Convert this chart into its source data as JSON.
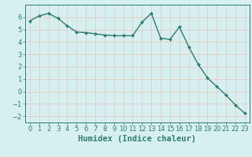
{
  "x": [
    0,
    1,
    2,
    3,
    4,
    5,
    6,
    7,
    8,
    9,
    10,
    11,
    12,
    13,
    14,
    15,
    16,
    17,
    18,
    19,
    20,
    21,
    22,
    23
  ],
  "y": [
    5.7,
    6.1,
    6.3,
    5.9,
    5.3,
    4.8,
    4.75,
    4.65,
    4.55,
    4.5,
    4.5,
    4.5,
    5.6,
    6.3,
    4.3,
    4.2,
    5.2,
    3.6,
    2.2,
    1.1,
    0.4,
    -0.3,
    -1.1,
    -1.75
  ],
  "line_color": "#2e7d6e",
  "marker": "D",
  "marker_size": 2.0,
  "linewidth": 1.0,
  "bg_color": "#d6f0ef",
  "grid_color": "#e8c8c8",
  "title": "",
  "xlabel": "Humidex (Indice chaleur)",
  "ylabel": "",
  "xlim": [
    -0.5,
    23.5
  ],
  "ylim": [
    -2.5,
    7.0
  ],
  "yticks": [
    -2,
    -1,
    0,
    1,
    2,
    3,
    4,
    5,
    6
  ],
  "xticks": [
    0,
    1,
    2,
    3,
    4,
    5,
    6,
    7,
    8,
    9,
    10,
    11,
    12,
    13,
    14,
    15,
    16,
    17,
    18,
    19,
    20,
    21,
    22,
    23
  ],
  "tick_color": "#2e7d6e",
  "label_fontsize": 7.5,
  "tick_fontsize": 6.0,
  "axis_color": "#2e7d6e"
}
